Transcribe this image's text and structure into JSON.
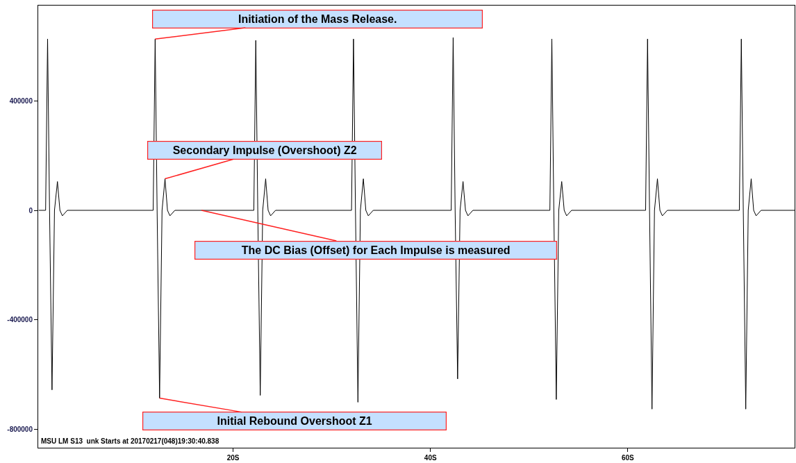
{
  "chart_data": {
    "type": "line",
    "x": [
      0.3,
      1.0,
      1.2,
      1.4,
      1.65,
      1.9,
      2.2,
      2.45,
      2.7,
      3.2,
      11.9,
      12.1,
      12.3,
      12.55,
      12.8,
      13.1,
      13.35,
      13.6,
      14.1,
      22.1,
      22.3,
      22.5,
      22.75,
      23.0,
      23.3,
      23.55,
      23.8,
      24.3,
      32.0,
      32.2,
      32.4,
      32.65,
      32.9,
      33.2,
      33.45,
      33.7,
      34.2,
      42.1,
      42.3,
      42.5,
      42.75,
      43.0,
      43.3,
      43.55,
      43.8,
      44.3,
      52.1,
      52.3,
      52.5,
      52.75,
      53.0,
      53.3,
      53.55,
      53.8,
      54.3,
      61.8,
      62.0,
      62.2,
      62.45,
      62.7,
      63.0,
      63.25,
      63.5,
      64.0,
      71.3,
      71.5,
      71.7,
      71.95,
      72.2,
      72.5,
      72.75,
      73.0,
      73.5,
      76.9
    ],
    "series": [
      {
        "color": "#000000",
        "values": [
          0,
          0,
          625000,
          0,
          -655000,
          0,
          105000,
          0,
          -20000,
          0,
          0,
          625000,
          0,
          -685000,
          0,
          115000,
          0,
          -20000,
          0,
          0,
          620000,
          0,
          -675000,
          0,
          115000,
          0,
          -20000,
          0,
          0,
          625000,
          0,
          -700000,
          0,
          115000,
          0,
          -20000,
          0,
          0,
          630000,
          0,
          -615000,
          0,
          105000,
          0,
          -20000,
          0,
          0,
          625000,
          0,
          -690000,
          0,
          105000,
          0,
          -20000,
          0,
          0,
          625000,
          0,
          -725000,
          0,
          115000,
          0,
          -20000,
          0,
          0,
          625000,
          0,
          -725000,
          0,
          115000,
          0,
          -20000,
          0,
          0
        ]
      }
    ],
    "xlim": [
      0.25,
      76.9
    ],
    "xticks": [
      {
        "value": 20,
        "label": "20S"
      },
      {
        "value": 40,
        "label": "40S"
      },
      {
        "value": 60,
        "label": "60S"
      }
    ],
    "ylim": [
      -866000,
      747000
    ],
    "yticks": [
      400000,
      0,
      -400000,
      -800000
    ],
    "grid": false,
    "marker": "none",
    "line_style": "solid",
    "annotations": [
      {
        "text": "Initiation of the Mass Release.",
        "x": 12.1,
        "y": 625000
      },
      {
        "text": "Secondary Impulse (Overshoot) Z2",
        "x": 13.1,
        "y": 115000
      },
      {
        "text": "The DC Bias (Offset) for Each Impulse is measured",
        "x": 16.8,
        "y": 0
      },
      {
        "text": "Initial Rebound Overshoot Z1",
        "x": 12.55,
        "y": -685000
      },
      "MSU LM S13  unk Starts at 20170217(048)19:30:40.838"
    ]
  }
}
